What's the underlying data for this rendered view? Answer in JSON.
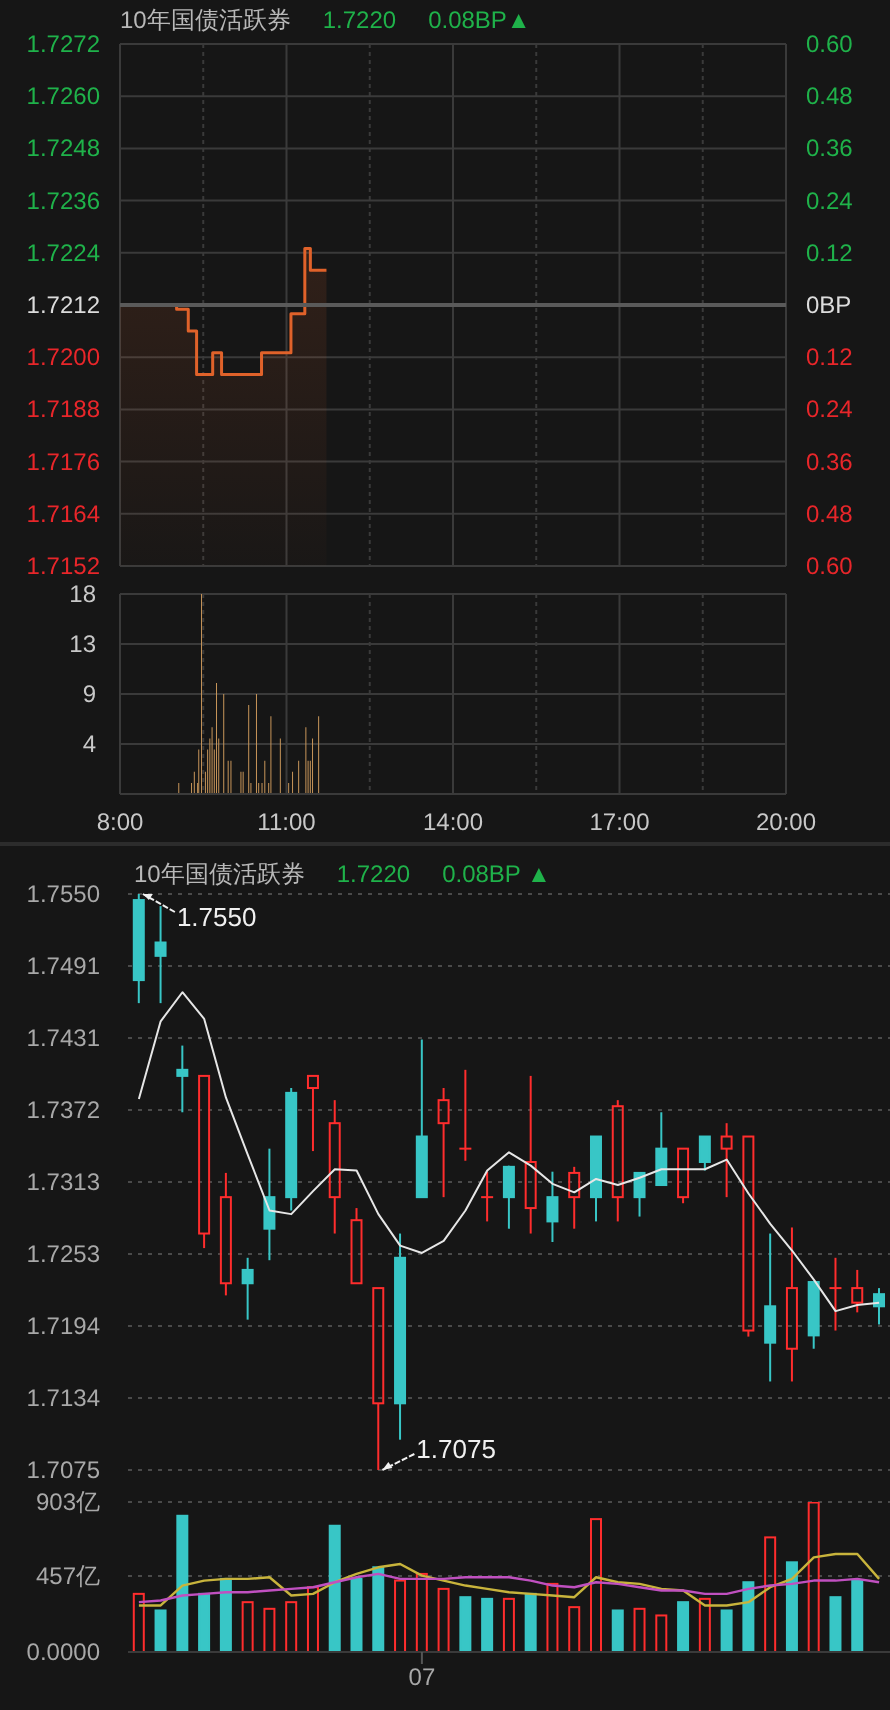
{
  "chart_data": [
    {
      "type": "area",
      "title": "10年国债活跃券",
      "annotations": [
        "1.7220",
        "0.08BP▲"
      ],
      "color": "#e0622a",
      "tick_labels": "y",
      "grid": true,
      "x": [
        8,
        9.02,
        9.02,
        9.23,
        9.23,
        9.38,
        9.38,
        9.67,
        9.67,
        9.83,
        9.83,
        10.55,
        10.55,
        11.08,
        11.08,
        11.33,
        11.33,
        11.43,
        11.43,
        11.72
      ],
      "values": [
        1.7212,
        1.7212,
        1.7211,
        1.7211,
        1.7206,
        1.7206,
        1.7196,
        1.7196,
        1.7201,
        1.7201,
        1.7196,
        1.7196,
        1.7201,
        1.7201,
        1.721,
        1.721,
        1.7225,
        1.7225,
        1.722,
        1.722
      ],
      "xlim": [
        8,
        20
      ],
      "xticks": [
        8,
        9.5,
        11,
        12.5,
        14,
        15.5,
        17,
        18.5,
        20
      ],
      "ylim": [
        1.7152,
        1.7272
      ],
      "yticks": [
        1.7152,
        1.7164,
        1.7176,
        1.7188,
        {
          "value": 1.72,
          "label": "1.7200"
        },
        1.7212,
        1.7224,
        1.7236,
        1.7248,
        {
          "value": 1.726,
          "label": "1.7260"
        },
        1.7272
      ],
      "y2lim": [
        -0.6,
        0.6
      ],
      "y2ticks": [
        {
          "value": -0.6,
          "label": "0.60"
        },
        {
          "value": -0.48,
          "label": "0.48"
        },
        {
          "value": -0.36,
          "label": "0.36"
        },
        {
          "value": -0.24,
          "label": "0.24"
        },
        {
          "value": -0.12,
          "label": "0.12"
        },
        {
          "value": 0,
          "label": "0BP"
        },
        0.12,
        0.24,
        0.36,
        0.48,
        {
          "value": 0.6,
          "label": "0.60"
        }
      ],
      "ref_lines": [
        {
          "axis": "y",
          "value": 1.7212,
          "color": "#5a5a5a"
        }
      ]
    },
    {
      "type": "bar",
      "color": "#c8965a",
      "grid": true,
      "x": [
        9.06,
        9.29,
        9.34,
        9.4,
        9.42,
        9.47,
        9.54,
        9.58,
        9.62,
        9.66,
        9.7,
        9.74,
        9.78,
        9.87,
        9.95,
        10.0,
        10.18,
        10.22,
        10.32,
        10.36,
        10.46,
        10.5,
        10.56,
        10.61,
        10.68,
        10.72,
        10.89,
        11.04,
        11.11,
        11.22,
        11.35,
        11.39,
        11.43,
        11.47,
        11.58
      ],
      "values": [
        1,
        1,
        2,
        1,
        4,
        18,
        2,
        4,
        5,
        6,
        4,
        10,
        5,
        9,
        3,
        3,
        2,
        2,
        8,
        1,
        9,
        1,
        1,
        3,
        1,
        7,
        5,
        1,
        2,
        3,
        6,
        3,
        3,
        5,
        7
      ],
      "xlim": [
        8,
        20
      ],
      "xticks": [
        {
          "value": 8,
          "label": "8:00"
        },
        {
          "value": 9.5,
          "label": null
        },
        {
          "value": 11,
          "label": "11:00"
        },
        {
          "value": 12.5,
          "label": null
        },
        {
          "value": 14,
          "label": "14:00"
        },
        {
          "value": 15.5,
          "label": null
        },
        {
          "value": 17,
          "label": "17:00"
        },
        {
          "value": 18.5,
          "label": null
        },
        {
          "value": 20,
          "label": "20:00"
        }
      ],
      "ylim": [
        0,
        18
      ],
      "yticks": [
        {
          "value": 4.5,
          "label": "4"
        },
        9,
        {
          "value": 13.5,
          "label": "13"
        },
        18
      ]
    },
    {
      "type": "candlestick",
      "title": "10年国债活跃券",
      "tick_labels": "y",
      "grid": "y",
      "annotations": [
        "1.7220",
        "0.08BP ▲",
        "1.7550",
        "1.7075"
      ],
      "categories": [
        null,
        null,
        null,
        null,
        null,
        null,
        null,
        null,
        null,
        null,
        null,
        null,
        null,
        null,
        null,
        null,
        null,
        null,
        null,
        null,
        null,
        null,
        null,
        null,
        null,
        null,
        null,
        null,
        null,
        null,
        null,
        null,
        null,
        null,
        null
      ],
      "ohlc": [
        [
          1.7545,
          1.755,
          1.746,
          1.7479
        ],
        [
          1.751,
          1.754,
          1.746,
          1.7499
        ],
        [
          1.7405,
          1.7425,
          1.737,
          1.74
        ],
        [
          1.727,
          1.74,
          1.7258,
          1.74
        ],
        [
          1.7229,
          1.732,
          1.7219,
          1.73
        ],
        [
          1.724,
          1.725,
          1.7199,
          1.7229
        ],
        [
          1.73,
          1.734,
          1.7248,
          1.7274
        ],
        [
          1.7386,
          1.739,
          1.7289,
          1.73
        ],
        [
          1.739,
          1.74,
          1.7338,
          1.74
        ],
        [
          1.73,
          1.738,
          1.727,
          1.7361
        ],
        [
          1.7229,
          1.7291,
          1.7229,
          1.7281
        ],
        [
          1.713,
          1.7225,
          1.7075,
          1.7225
        ],
        [
          1.725,
          1.727,
          1.71,
          1.713
        ],
        [
          1.735,
          1.743,
          1.73,
          1.73
        ],
        [
          1.7361,
          1.739,
          1.73,
          1.738
        ],
        [
          1.734,
          1.7405,
          1.733,
          1.734
        ],
        [
          1.73,
          1.7321,
          1.728,
          1.73
        ],
        [
          1.7325,
          1.7326,
          1.7274,
          1.73
        ],
        [
          1.7291,
          1.74,
          1.727,
          1.7329
        ],
        [
          1.73,
          1.7321,
          1.7263,
          1.728
        ],
        [
          1.73,
          1.7325,
          1.7274,
          1.732
        ],
        [
          1.735,
          1.735,
          1.728,
          1.73
        ],
        [
          1.73,
          1.738,
          1.728,
          1.7375
        ],
        [
          1.732,
          1.732,
          1.7284,
          1.73
        ],
        [
          1.734,
          1.737,
          1.731,
          1.731
        ],
        [
          1.73,
          1.734,
          1.7295,
          1.734
        ],
        [
          1.735,
          1.735,
          1.7322,
          1.7329
        ],
        [
          1.734,
          1.7361,
          1.73,
          1.735
        ],
        [
          1.719,
          1.735,
          1.7185,
          1.735
        ],
        [
          1.721,
          1.727,
          1.7148,
          1.718
        ],
        [
          1.7175,
          1.7275,
          1.7148,
          1.7225
        ],
        [
          1.723,
          1.723,
          1.7175,
          1.7186
        ],
        [
          1.7225,
          1.725,
          1.719,
          1.7225
        ],
        [
          1.7213,
          1.724,
          1.7205,
          1.7225
        ],
        [
          1.722,
          1.7225,
          1.7195,
          1.721
        ]
      ],
      "colors": [
        "#38c6c6",
        "#38c6c6",
        "#38c6c6",
        "#ff2d2d",
        "#ff2d2d",
        "#38c6c6",
        "#38c6c6",
        "#38c6c6",
        "#ff2d2d",
        "#ff2d2d",
        "#ff2d2d",
        "#ff2d2d",
        "#38c6c6",
        "#38c6c6",
        "#ff2d2d",
        "#ff2d2d",
        "#ff2d2d",
        "#38c6c6",
        "#ff2d2d",
        "#38c6c6",
        "#ff2d2d",
        "#38c6c6",
        "#ff2d2d",
        "#38c6c6",
        "#38c6c6",
        "#ff2d2d",
        "#38c6c6",
        "#ff2d2d",
        "#ff2d2d",
        "#38c6c6",
        "#ff2d2d",
        "#38c6c6",
        "#ff2d2d",
        "#ff2d2d",
        "#38c6c6"
      ],
      "series": [
        {
          "type": "line",
          "color": "#e6e6e6",
          "values": [
            1.7381,
            1.7445,
            1.7469,
            1.7447,
            1.7382,
            1.7335,
            1.7289,
            1.7286,
            1.7305,
            1.7323,
            1.7322,
            1.7286,
            1.726,
            1.7254,
            1.7264,
            1.7289,
            1.7322,
            1.7337,
            1.7326,
            1.7311,
            1.7304,
            1.7315,
            1.731,
            1.7316,
            1.7323,
            1.7323,
            1.7323,
            1.7331,
            1.7303,
            1.7278,
            1.7256,
            1.7232,
            1.7206,
            1.7211,
            1.7213
          ]
        }
      ],
      "ylim": [
        1.7075,
        1.755
      ],
      "yticks": [
        1.7075,
        {
          "value": 1.7134375,
          "label": "1.7134"
        },
        {
          "value": 1.719375,
          "label": "1.7194"
        },
        {
          "value": 1.7253125,
          "label": "1.7253"
        },
        {
          "value": 1.73125,
          "label": "1.7313"
        },
        {
          "value": 1.7371875,
          "label": "1.7372"
        },
        {
          "value": 1.743125,
          "label": "1.7431"
        },
        {
          "value": 1.7490625,
          "label": "1.7491"
        },
        {
          "value": 1.755,
          "label": "1.7550"
        }
      ]
    },
    {
      "type": "bar",
      "grid": "y",
      "categories": [
        null,
        null,
        null,
        null,
        null,
        null,
        null,
        null,
        null,
        null,
        null,
        null,
        null,
        "07",
        null,
        null,
        null,
        null,
        null,
        null,
        null,
        null,
        null,
        null,
        null,
        null,
        null,
        null,
        null,
        null,
        null,
        null,
        null,
        null,
        null
      ],
      "series": [
        {
          "type": "bar",
          "colors": [
            "#ff2d2d",
            "#38c6c6",
            "#38c6c6",
            "#38c6c6",
            "#38c6c6",
            "#ff2d2d",
            "#ff2d2d",
            "#ff2d2d",
            "#ff2d2d",
            "#38c6c6",
            "#38c6c6",
            "#38c6c6",
            "#ff2d2d",
            "#ff2d2d",
            "#ff2d2d",
            "#38c6c6",
            "#38c6c6",
            "#ff2d2d",
            "#38c6c6",
            "#ff2d2d",
            "#ff2d2d",
            "#ff2d2d",
            "#38c6c6",
            "#ff2d2d",
            "#ff2d2d",
            "#38c6c6",
            "#ff2d2d",
            "#38c6c6",
            "#38c6c6",
            "#ff2d2d",
            "#38c6c6",
            "#ff2d2d",
            "#38c6c6",
            "#38c6c6",
            "#ff2d2d"
          ],
          "values": [
            350,
            250,
            820,
            350,
            440,
            300,
            260,
            300,
            390,
            760,
            440,
            510,
            430,
            470,
            380,
            330,
            320,
            320,
            350,
            410,
            270,
            800,
            250,
            260,
            220,
            300,
            320,
            250,
            420,
            690,
            540,
            900,
            330,
            430,
            0
          ]
        },
        {
          "type": "line",
          "color": "#c8b43c",
          "values": [
            280,
            280,
            400,
            430,
            440,
            440,
            450,
            340,
            350,
            420,
            470,
            510,
            530,
            460,
            430,
            400,
            380,
            360,
            350,
            340,
            330,
            450,
            420,
            410,
            380,
            370,
            280,
            280,
            300,
            390,
            440,
            570,
            590,
            590,
            440
          ]
        },
        {
          "type": "line",
          "color": "#c050c0",
          "values": [
            300,
            310,
            340,
            350,
            360,
            360,
            370,
            380,
            390,
            420,
            450,
            470,
            440,
            440,
            440,
            450,
            450,
            450,
            430,
            400,
            390,
            420,
            410,
            390,
            370,
            370,
            350,
            350,
            380,
            400,
            410,
            430,
            430,
            440,
            420
          ]
        }
      ],
      "ylim": [
        0,
        903
      ],
      "yticks": [
        {
          "value": 0,
          "label": "0.0000"
        },
        {
          "value": 457,
          "label": "457亿"
        },
        {
          "value": 903,
          "label": "903亿"
        }
      ]
    }
  ]
}
